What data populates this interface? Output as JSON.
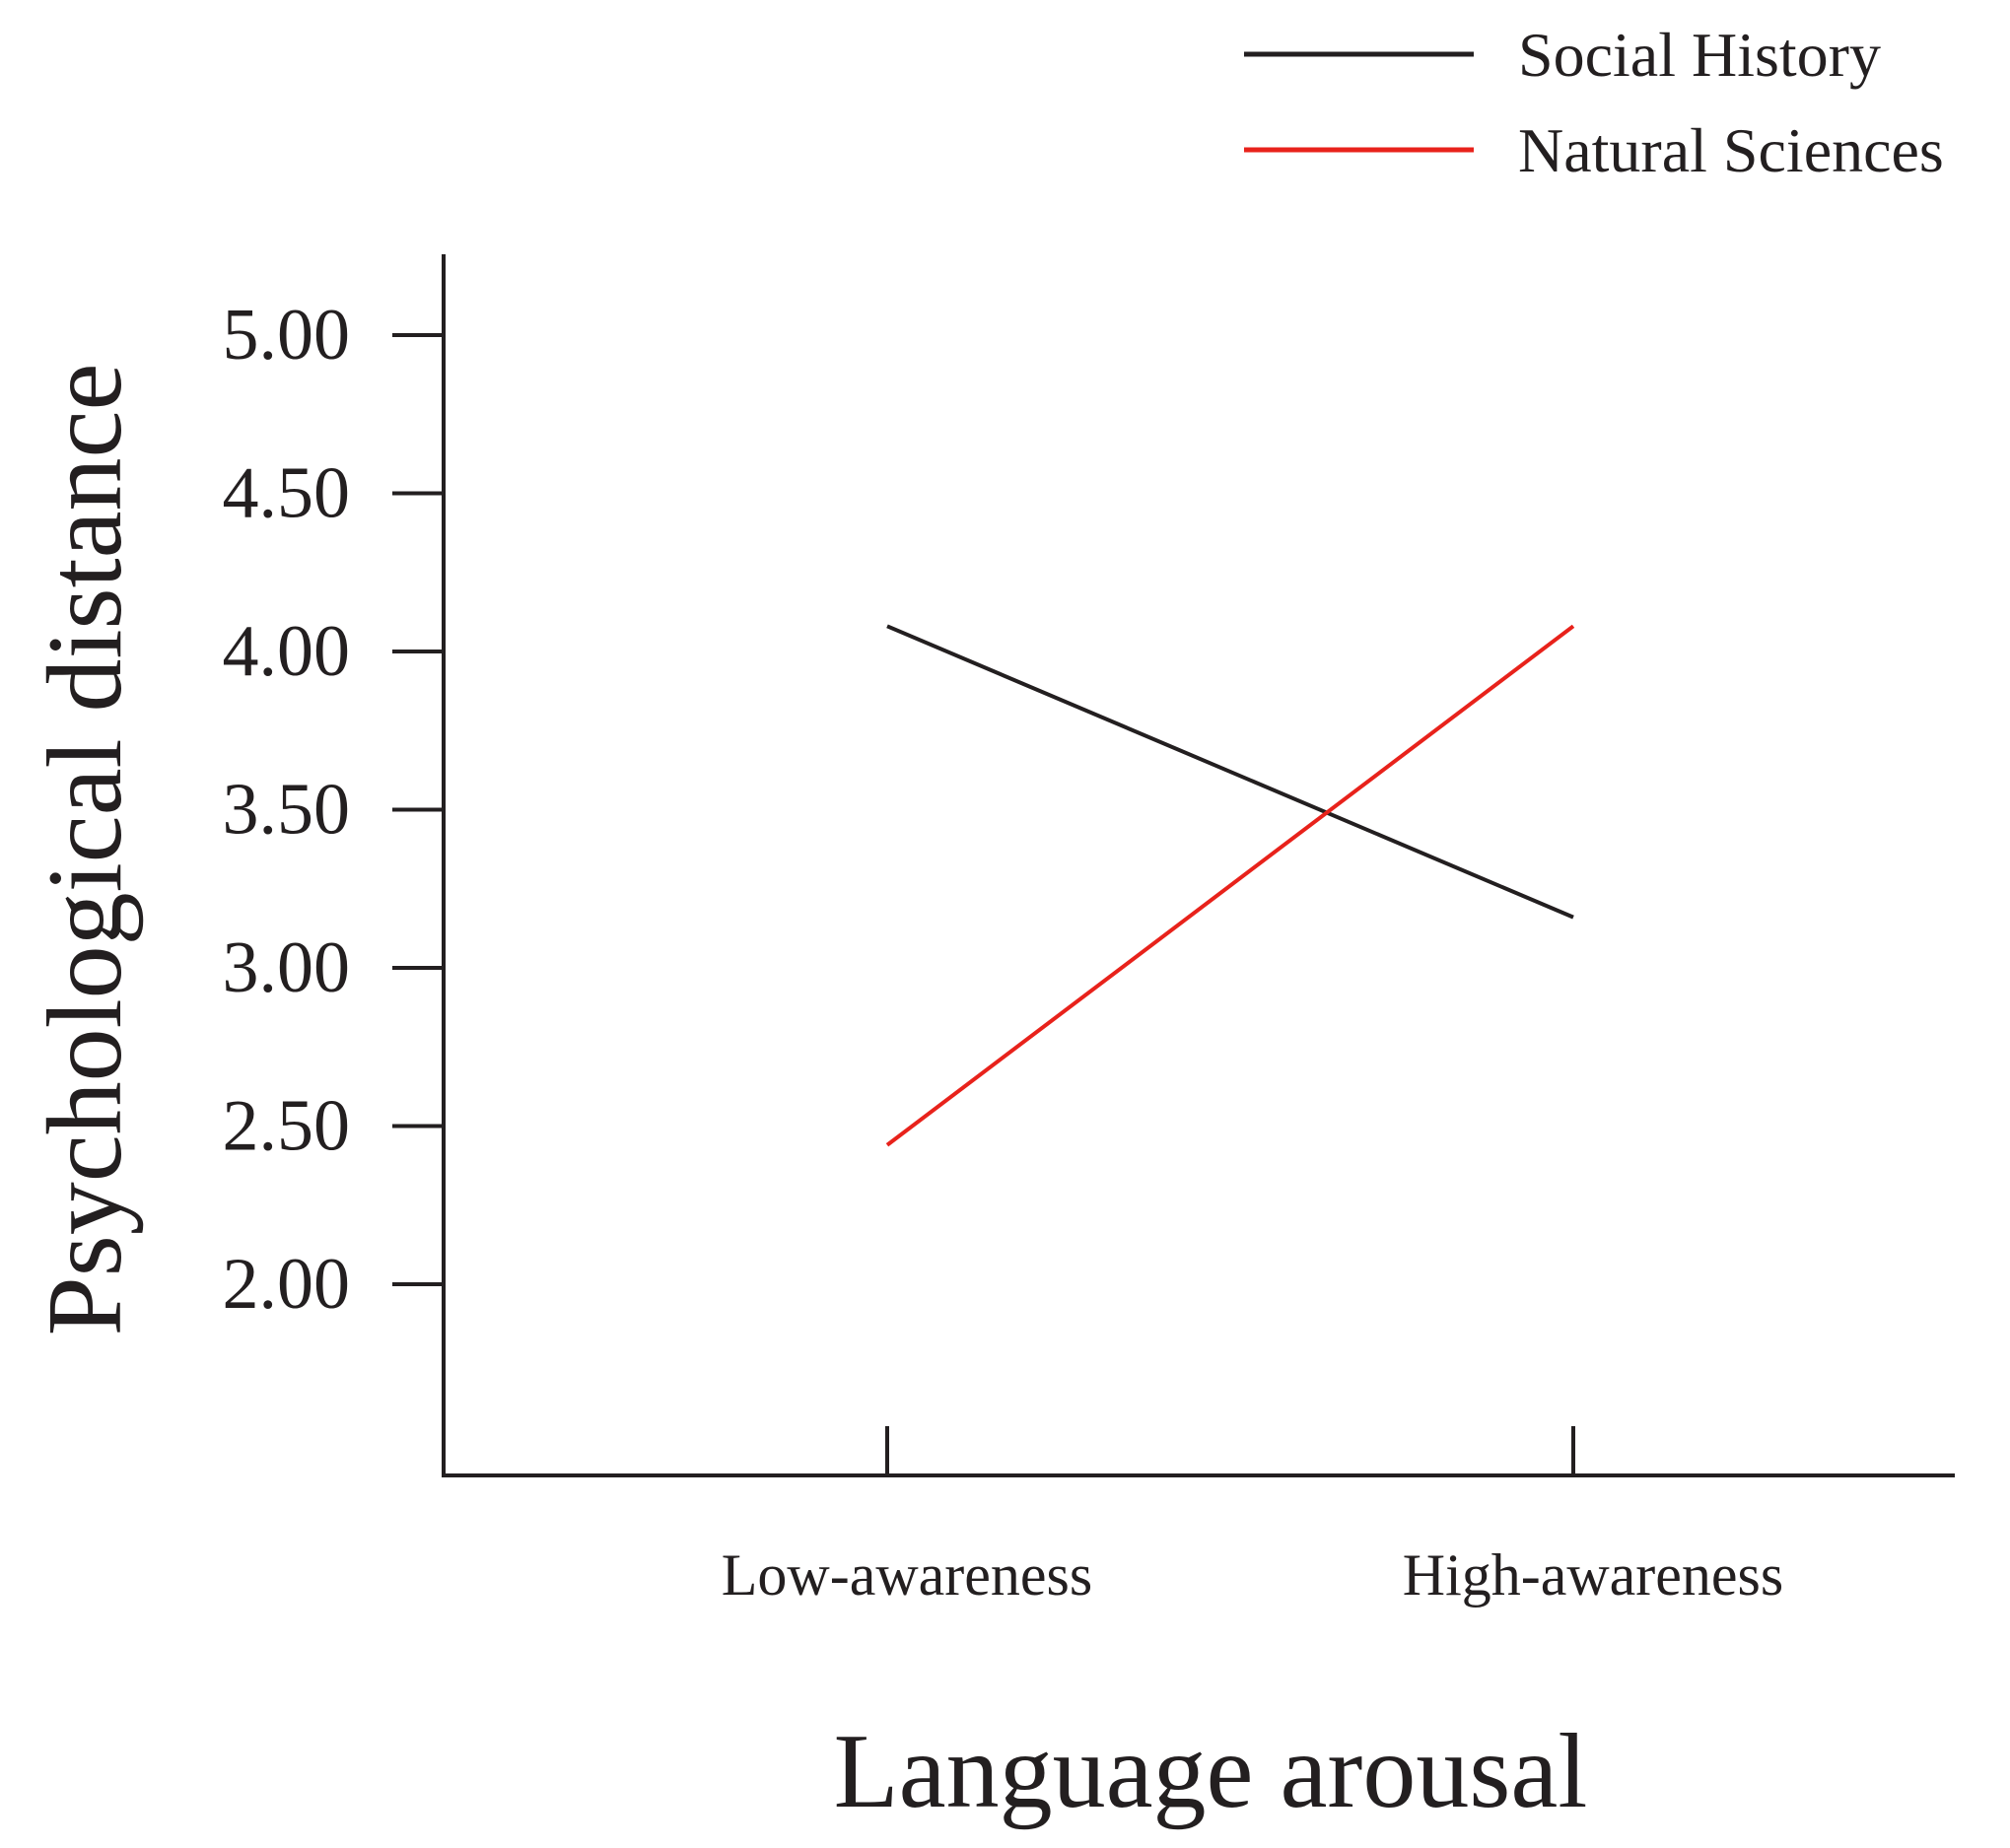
{
  "chart_data": {
    "type": "line",
    "title": "",
    "xlabel": "Language arousal",
    "ylabel": "Psychological distance",
    "categories": [
      "Low-awareness",
      "High-awareness"
    ],
    "y_ticks": [
      "5.00",
      "4.50",
      "4.00",
      "3.50",
      "3.00",
      "2.50",
      "2.00"
    ],
    "ylim": [
      1.5,
      5.25
    ],
    "grid": false,
    "legend_position": "top-right",
    "series": [
      {
        "name": "Social History",
        "color": "#231f20",
        "values": [
          4.08,
          3.16
        ]
      },
      {
        "name": "Natural Sciences",
        "color": "#e8221b",
        "values": [
          2.44,
          4.08
        ]
      }
    ]
  }
}
